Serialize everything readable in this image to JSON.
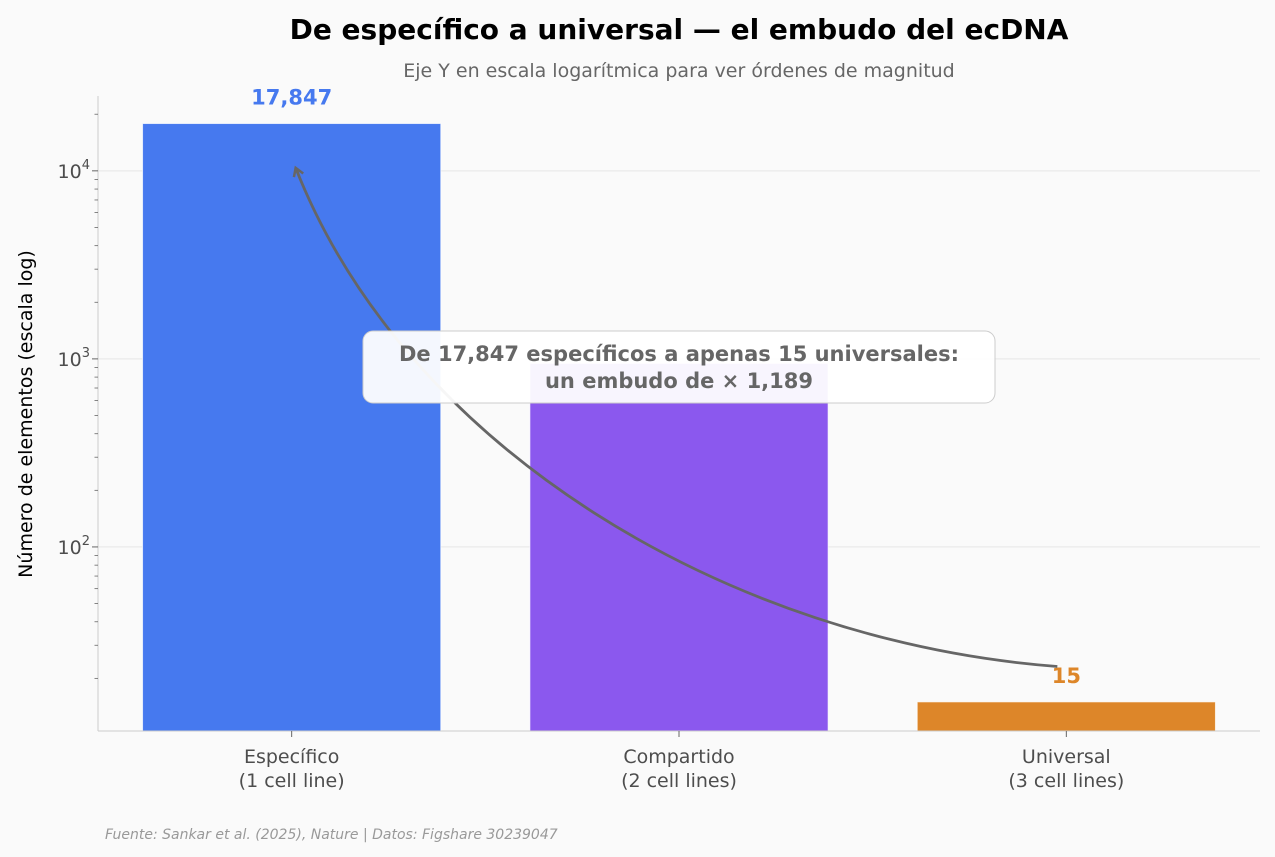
{
  "chart_data": {
    "type": "bar",
    "title": "De específico a universal — el embudo del ecDNA",
    "subtitle": "Eje Y en escala logarítmica para ver órdenes de magnitud",
    "ylabel": "Número de elementos (escala log)",
    "xlabel": "",
    "yscale": "log",
    "ylim": [
      10.5,
      25000
    ],
    "grid": "horizontal",
    "categories": [
      [
        "Específico",
        "(1 cell line)"
      ],
      [
        "Compartido",
        "(2 cell lines)"
      ],
      [
        "Universal",
        "(3 cell lines)"
      ]
    ],
    "values": [
      17847,
      947,
      15
    ],
    "colors": [
      "#4679ef",
      "#8b58ee",
      "#dd8629"
    ],
    "data_labels": [
      "17,847",
      "",
      "15"
    ],
    "y_ticks": [
      {
        "value": 100,
        "base": "10",
        "exp": "2"
      },
      {
        "value": 1000,
        "base": "10",
        "exp": "3"
      },
      {
        "value": 10000,
        "base": "10",
        "exp": "4"
      }
    ],
    "annotation": {
      "lines": [
        "De 17,847 específicos a apenas 15 universales:",
        "un embudo de × 1,189"
      ],
      "arrow_from_value": 24,
      "arrow_to_value": 10000
    },
    "source": "Fuente: Sankar et al. (2025), Nature | Datos: Figshare 30239047"
  }
}
